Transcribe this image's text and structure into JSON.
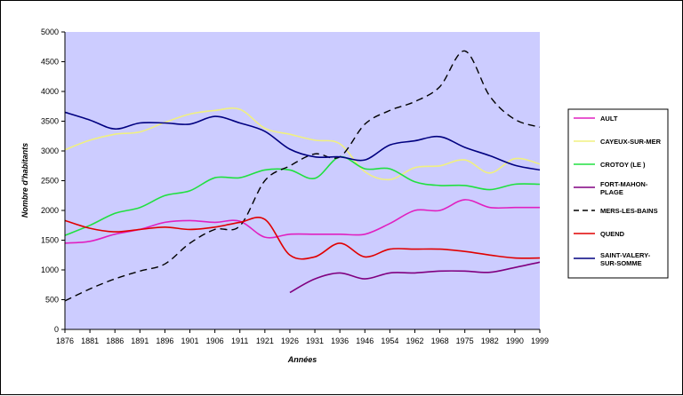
{
  "chart_data": {
    "type": "line",
    "title": "",
    "xlabel": "Années",
    "ylabel": "Nombre d'habitants",
    "ylim": [
      0,
      5000
    ],
    "yticks": [
      0,
      500,
      1000,
      1500,
      2000,
      2500,
      3000,
      3500,
      4000,
      4500,
      5000
    ],
    "categories": [
      "1876",
      "1881",
      "1886",
      "1891",
      "1896",
      "1901",
      "1906",
      "1911",
      "1921",
      "1926",
      "1931",
      "1936",
      "1946",
      "1954",
      "1962",
      "1968",
      "1975",
      "1982",
      "1990",
      "1999"
    ],
    "grid": false,
    "legend_position": "right",
    "plot_background": "#ccccff",
    "series": [
      {
        "name": "AULT",
        "color": "#e020c0",
        "dash": "solid",
        "values": [
          1450,
          1480,
          1600,
          1680,
          1800,
          1830,
          1800,
          1820,
          1550,
          1600,
          1600,
          1600,
          1600,
          1780,
          2000,
          2000,
          2180,
          2050,
          2050,
          2050
        ]
      },
      {
        "name": "CAYEUX-SUR-MER",
        "color": "#f0f080",
        "dash": "solid",
        "values": [
          3020,
          3180,
          3280,
          3320,
          3480,
          3620,
          3680,
          3700,
          3380,
          3280,
          3180,
          3120,
          2650,
          2520,
          2720,
          2750,
          2850,
          2630,
          2870,
          2780
        ]
      },
      {
        "name": "CROTOY (LE )",
        "color": "#20e040",
        "dash": "solid",
        "values": [
          1580,
          1750,
          1950,
          2050,
          2250,
          2330,
          2550,
          2550,
          2680,
          2680,
          2540,
          2900,
          2700,
          2700,
          2480,
          2420,
          2420,
          2350,
          2440,
          2440
        ]
      },
      {
        "name": "FORT-MAHON-PLAGE",
        "color": "#800080",
        "dash": "solid",
        "values": [
          null,
          null,
          null,
          null,
          null,
          null,
          null,
          null,
          null,
          620,
          850,
          950,
          850,
          950,
          950,
          980,
          980,
          960,
          1040,
          1130
        ]
      },
      {
        "name": "MERS-LES-BAINS",
        "color": "#000000",
        "dash": "dashed",
        "values": [
          480,
          680,
          850,
          980,
          1100,
          1450,
          1680,
          1740,
          2500,
          2750,
          2950,
          2900,
          3450,
          3680,
          3830,
          4080,
          4680,
          3920,
          3530,
          3400
        ]
      },
      {
        "name": "QUEND",
        "color": "#e00000",
        "dash": "solid",
        "values": [
          1830,
          1700,
          1640,
          1680,
          1720,
          1680,
          1720,
          1800,
          1850,
          1250,
          1220,
          1450,
          1220,
          1350,
          1350,
          1350,
          1310,
          1250,
          1200,
          1200
        ]
      },
      {
        "name": "SAINT-VALERY-SUR-SOMME",
        "color": "#000080",
        "dash": "solid",
        "values": [
          3650,
          3520,
          3370,
          3470,
          3470,
          3450,
          3580,
          3470,
          3330,
          3030,
          2900,
          2900,
          2850,
          3100,
          3170,
          3240,
          3060,
          2920,
          2760,
          2680
        ]
      }
    ],
    "legend_entries": [
      {
        "lines": [
          "AULT"
        ]
      },
      {
        "lines": [
          "CAYEUX-SUR-MER"
        ]
      },
      {
        "lines": [
          "CROTOY (LE )"
        ]
      },
      {
        "lines": [
          "FORT-MAHON-",
          "PLAGE"
        ]
      },
      {
        "lines": [
          "MERS-LES-BAINS"
        ]
      },
      {
        "lines": [
          "QUEND"
        ]
      },
      {
        "lines": [
          "SAINT-VALERY-",
          "SUR-SOMME"
        ]
      }
    ]
  }
}
